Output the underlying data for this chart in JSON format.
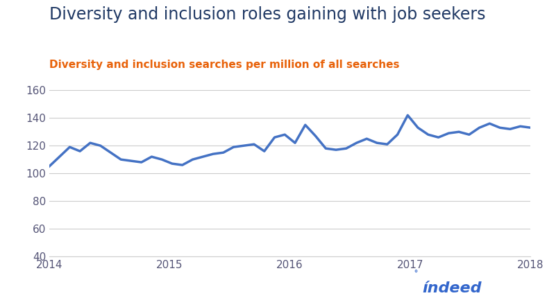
{
  "title": "Diversity and inclusion roles gaining with job seekers",
  "subtitle": "Diversity and inclusion searches per million of all searches",
  "title_color": "#1f3864",
  "subtitle_color": "#e8620a",
  "line_color": "#4472c4",
  "line_width": 2.5,
  "background_color": "#ffffff",
  "ylim": [
    40,
    165
  ],
  "yticks": [
    40,
    60,
    80,
    100,
    120,
    140,
    160
  ],
  "xtick_labels": [
    "2014",
    "2015",
    "2016",
    "2017",
    "2018"
  ],
  "grid_color": "#cccccc",
  "indeed_color": "#3366cc",
  "y_values": [
    105,
    112,
    119,
    116,
    122,
    120,
    115,
    110,
    109,
    108,
    112,
    110,
    107,
    106,
    110,
    112,
    114,
    115,
    119,
    120,
    121,
    116,
    126,
    128,
    122,
    135,
    127,
    118,
    117,
    118,
    122,
    125,
    122,
    121,
    128,
    142,
    133,
    128,
    126,
    129,
    130,
    128,
    133,
    136,
    133,
    132,
    134,
    133
  ],
  "title_fontsize": 17,
  "subtitle_fontsize": 11,
  "tick_fontsize": 11,
  "tick_color": "#555577"
}
